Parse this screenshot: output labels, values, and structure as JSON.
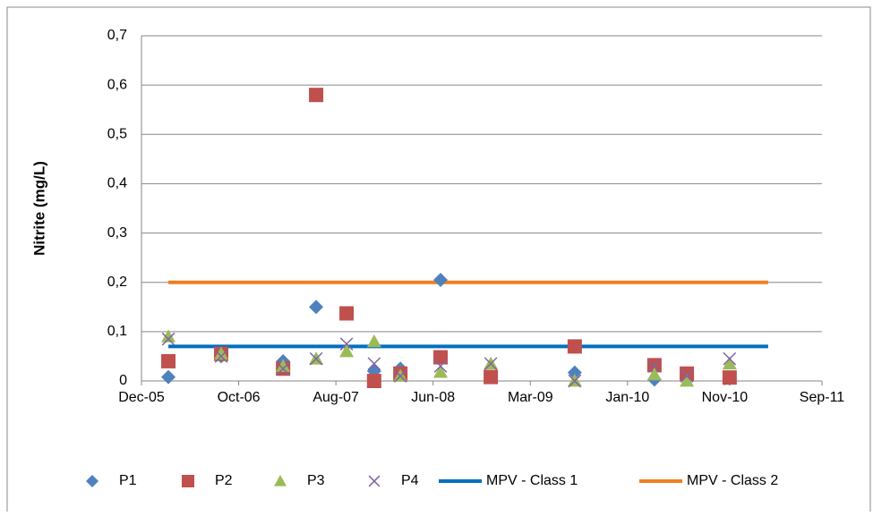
{
  "chart_data": {
    "type": "scatter",
    "y_label": "Nitrite (mg/L)",
    "x": [
      38770,
      38933,
      39124,
      39226,
      39320,
      39405,
      39486,
      39610,
      39765,
      40024,
      40270,
      40370,
      40502
    ],
    "xlim": [
      38687,
      40787
    ],
    "xticks": [
      {
        "value": 38687,
        "label": "Dec-05"
      },
      {
        "value": 38987,
        "label": "Oct-06"
      },
      {
        "value": 39287,
        "label": "Aug-07"
      },
      {
        "value": 39587,
        "label": "Jun-08"
      },
      {
        "value": 39887,
        "label": "Mar-09"
      },
      {
        "value": 40187,
        "label": "Jan-10"
      },
      {
        "value": 40487,
        "label": "Nov-10"
      },
      {
        "value": 40787,
        "label": "Sep-11"
      }
    ],
    "ylim": [
      0,
      0.7
    ],
    "yticks": [
      0,
      {
        "value": 0.1,
        "label": "0,1"
      },
      {
        "value": 0.2,
        "label": "0,2"
      },
      {
        "value": 0.3,
        "label": "0,3"
      },
      {
        "value": 0.4,
        "label": "0,4"
      },
      {
        "value": 0.5,
        "label": "0,5"
      },
      {
        "value": 0.6,
        "label": "0,6"
      },
      {
        "value": 0.7,
        "label": "0,7"
      }
    ],
    "grid": true,
    "legend": "bottom",
    "series": [
      {
        "name": "P1",
        "color": "#4f81bd",
        "marker": "diamond",
        "values": [
          0.008,
          0.05,
          0.04,
          0.15,
          null,
          0.02,
          0.025,
          0.205,
          null,
          0.017,
          0.003,
          0.01,
          0.005
        ]
      },
      {
        "name": "P2",
        "color": "#c0504d",
        "marker": "square",
        "values": [
          0.04,
          0.055,
          0.025,
          0.58,
          0.137,
          0.0,
          0.015,
          0.048,
          0.008,
          0.07,
          0.032,
          0.015,
          0.007
        ]
      },
      {
        "name": "P3",
        "color": "#9bbb59",
        "marker": "triangle",
        "values": [
          0.09,
          0.055,
          0.03,
          0.045,
          0.06,
          0.08,
          0.01,
          0.018,
          0.035,
          0.0,
          0.013,
          0.0,
          0.035
        ]
      },
      {
        "name": "P4",
        "color": "#8064a2",
        "marker": "cross",
        "values": [
          0.085,
          0.05,
          0.025,
          0.045,
          0.075,
          0.035,
          0.01,
          0.03,
          0.035,
          0.0,
          0.03,
          0.01,
          0.045
        ]
      },
      {
        "name": "MPV - Class 1",
        "color": "#0070c0",
        "marker": "line",
        "x": [
          38770,
          40621
        ],
        "values": [
          0.07,
          0.07
        ]
      },
      {
        "name": "MPV - Class 2",
        "color": "#f07f20",
        "marker": "line",
        "x": [
          38770,
          40621
        ],
        "values": [
          0.2,
          0.2
        ]
      }
    ]
  }
}
